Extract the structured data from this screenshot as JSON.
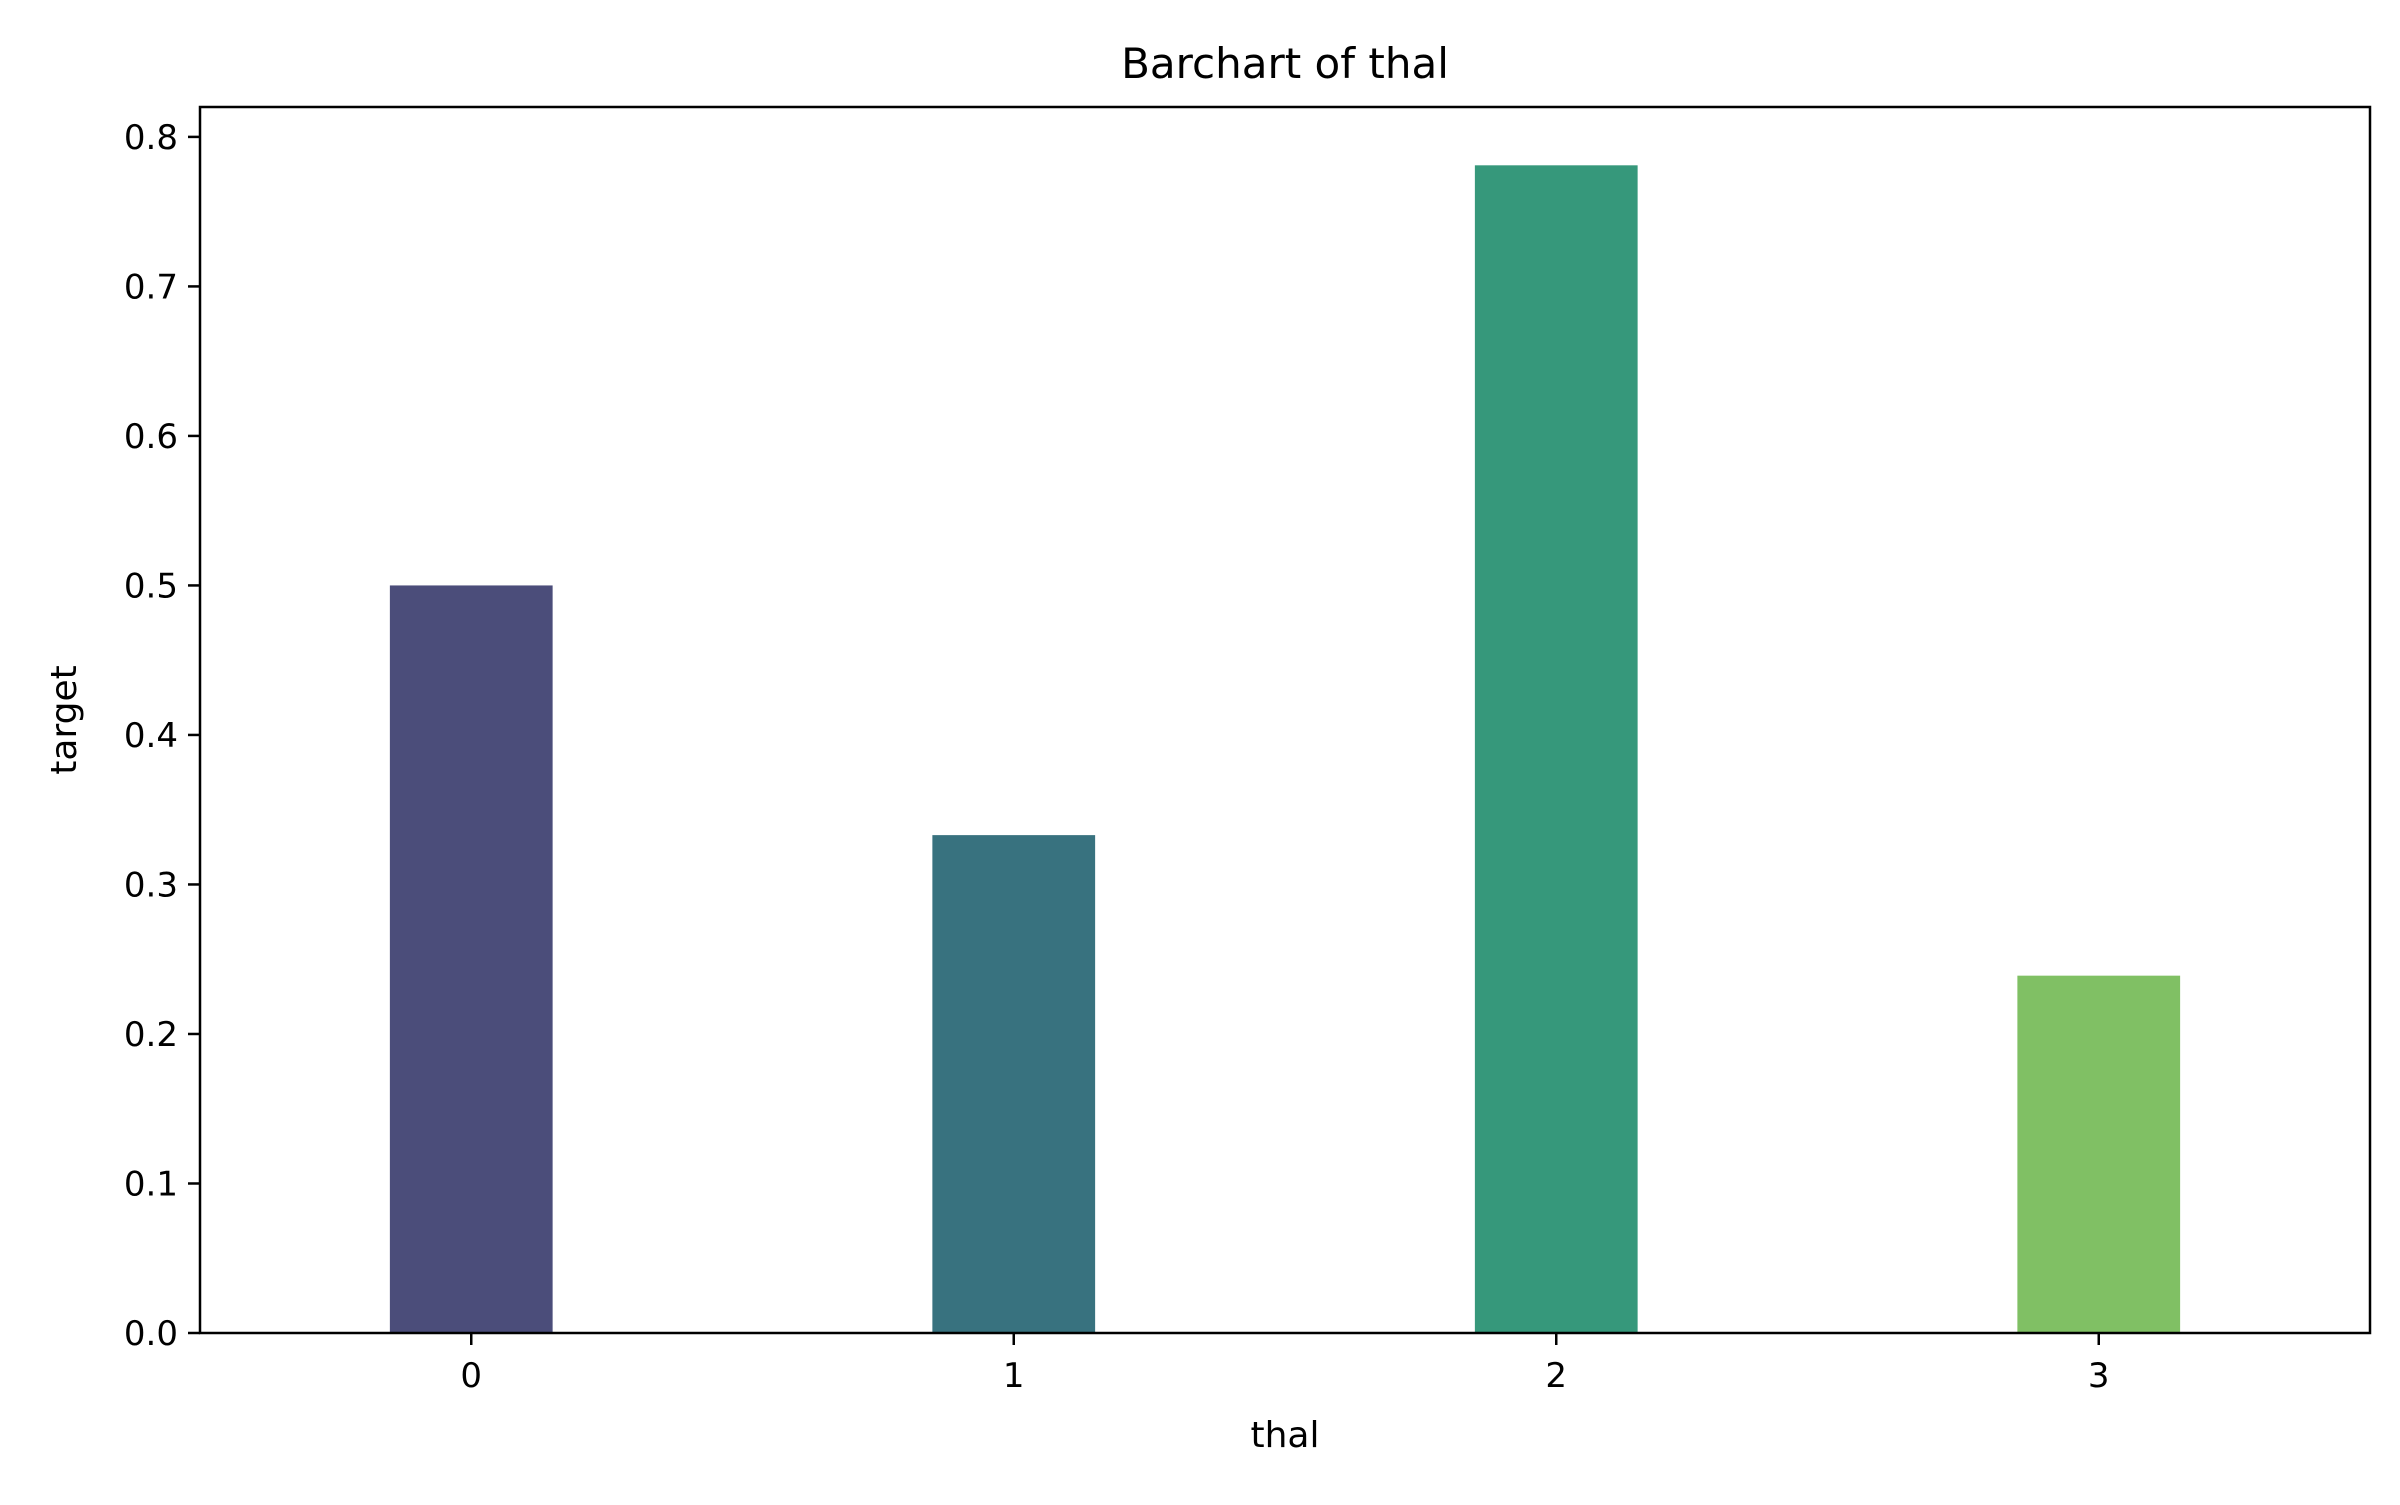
{
  "chart_data": {
    "type": "bar",
    "title": "Barchart of thal",
    "xlabel": "thal",
    "ylabel": "target",
    "categories": [
      "0",
      "1",
      "2",
      "3"
    ],
    "values": [
      0.5,
      0.333,
      0.781,
      0.239
    ],
    "colors": [
      "#4b4d7a",
      "#38727f",
      "#36987b",
      "#80c064"
    ],
    "ylim": [
      0.0,
      0.82
    ],
    "yticks": [
      0.0,
      0.1,
      0.2,
      0.3,
      0.4,
      0.5,
      0.6,
      0.7,
      0.8
    ],
    "ytick_labels": [
      "0.0",
      "0.1",
      "0.2",
      "0.3",
      "0.4",
      "0.5",
      "0.6",
      "0.7",
      "0.8"
    ],
    "grid": false,
    "legend": "none"
  }
}
